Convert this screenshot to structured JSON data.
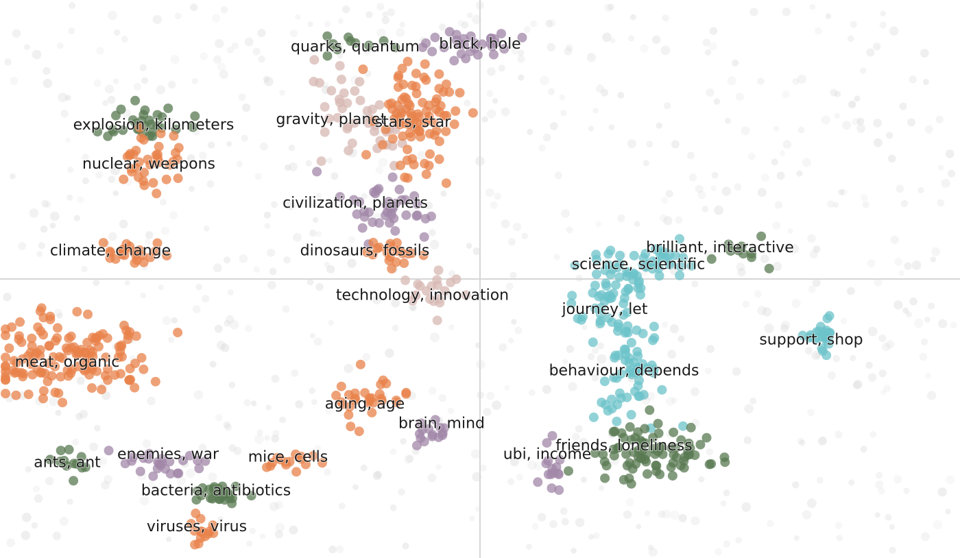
{
  "chart_data": {
    "type": "scatter",
    "title": "",
    "xlabel": "",
    "ylabel": "",
    "xlim": [
      -1,
      1
    ],
    "ylim": [
      -1,
      1
    ],
    "origin_lines": true,
    "grid": false,
    "legend": "none",
    "colors": {
      "orange": "#e8824a",
      "purple": "#a287a8",
      "teal": "#6cc3c9",
      "green": "#587a52",
      "rose": "#d7b8b3",
      "background": "#d9d9d9",
      "axis": "#d6d6d6"
    },
    "clusters": [
      {
        "label": "quarks, quantum",
        "x": -0.27,
        "y": 0.83,
        "color": "green",
        "spread": [
          0.04,
          0.025
        ],
        "count": 10
      },
      {
        "label": "black, hole",
        "x": -0.03,
        "y": 0.84,
        "color": "purple",
        "spread": [
          0.04,
          0.03
        ],
        "count": 30
      },
      {
        "label": "explosion, kilometers",
        "x": -0.69,
        "y": 0.56,
        "color": "green",
        "spread": [
          0.04,
          0.04
        ],
        "count": 30
      },
      {
        "label": "gravity, planet",
        "x": -0.25,
        "y": 0.56,
        "color": "rose",
        "spread": [
          0.07,
          0.09
        ],
        "count": 45
      },
      {
        "label": "stars, star",
        "x": -0.13,
        "y": 0.58,
        "color": "orange",
        "spread": [
          0.04,
          0.12
        ],
        "count": 90
      },
      {
        "label": "nuclear, weapons",
        "x": -0.69,
        "y": 0.42,
        "color": "orange",
        "spread": [
          0.035,
          0.06
        ],
        "count": 35
      },
      {
        "label": "civilization, planets",
        "x": -0.2,
        "y": 0.27,
        "color": "purple",
        "spread": [
          0.05,
          0.05
        ],
        "count": 40
      },
      {
        "label": "climate, change",
        "x": -0.72,
        "y": 0.09,
        "color": "orange",
        "spread": [
          0.04,
          0.02
        ],
        "count": 25
      },
      {
        "label": "dinosaurs, fossils",
        "x": -0.17,
        "y": 0.09,
        "color": "orange",
        "spread": [
          0.03,
          0.02
        ],
        "count": 20
      },
      {
        "label": "brilliant, interactive",
        "x": 0.55,
        "y": 0.1,
        "color": "green",
        "spread": [
          0.04,
          0.03
        ],
        "count": 10
      },
      {
        "label": "science, scientific",
        "x": 0.36,
        "y": 0.05,
        "color": "teal",
        "spread": [
          0.06,
          0.03
        ],
        "count": 40
      },
      {
        "label": "technology, innovation",
        "x": -0.09,
        "y": -0.05,
        "color": "rose",
        "spread": [
          0.03,
          0.05
        ],
        "count": 20
      },
      {
        "label": "journey, let",
        "x": 0.28,
        "y": -0.08,
        "color": "teal",
        "spread": [
          0.04,
          0.07
        ],
        "count": 55
      },
      {
        "label": "support, shop",
        "x": 0.71,
        "y": -0.2,
        "color": "teal",
        "spread": [
          0.02,
          0.03
        ],
        "count": 25
      },
      {
        "label": "meat, organic",
        "x": -0.87,
        "y": -0.27,
        "color": "orange",
        "spread": [
          0.09,
          0.07
        ],
        "count": 140
      },
      {
        "label": "behaviour, depends",
        "x": 0.32,
        "y": -0.32,
        "color": "teal",
        "spread": [
          0.04,
          0.1
        ],
        "count": 55
      },
      {
        "label": "aging, age",
        "x": -0.24,
        "y": -0.44,
        "color": "orange",
        "spread": [
          0.05,
          0.04
        ],
        "count": 30
      },
      {
        "label": "brain, mind",
        "x": -0.1,
        "y": -0.55,
        "color": "purple",
        "spread": [
          0.03,
          0.02
        ],
        "count": 15
      },
      {
        "label": "friends, loneliness",
        "x": 0.35,
        "y": -0.62,
        "color": "green",
        "spread": [
          0.06,
          0.05
        ],
        "count": 80
      },
      {
        "label": "ubi, income",
        "x": 0.15,
        "y": -0.67,
        "color": "purple",
        "spread": [
          0.01,
          0.06
        ],
        "count": 15
      },
      {
        "label": "ants, ant",
        "x": -0.86,
        "y": -0.66,
        "color": "green",
        "spread": [
          0.02,
          0.02
        ],
        "count": 12
      },
      {
        "label": "enemies, war",
        "x": -0.68,
        "y": -0.66,
        "color": "purple",
        "spread": [
          0.05,
          0.02
        ],
        "count": 25
      },
      {
        "label": "mice, cells",
        "x": -0.4,
        "y": -0.65,
        "color": "orange",
        "spread": [
          0.03,
          0.02
        ],
        "count": 15
      },
      {
        "label": "bacteria, antibiotics",
        "x": -0.55,
        "y": -0.77,
        "color": "green",
        "spread": [
          0.03,
          0.02
        ],
        "count": 25
      },
      {
        "label": "viruses, virus",
        "x": -0.58,
        "y": -0.9,
        "color": "orange",
        "spread": [
          0.015,
          0.03
        ],
        "count": 15
      }
    ],
    "labels": [
      {
        "text": "quarks, quantum",
        "x": -0.26,
        "y": 0.83
      },
      {
        "text": "black, hole",
        "x": 0.0,
        "y": 0.84
      },
      {
        "text": "explosion, kilometers",
        "x": -0.68,
        "y": 0.55
      },
      {
        "text": "gravity, planet",
        "x": -0.31,
        "y": 0.57
      },
      {
        "text": "stars, star",
        "x": -0.14,
        "y": 0.56
      },
      {
        "text": "nuclear, weapons",
        "x": -0.69,
        "y": 0.41
      },
      {
        "text": "civilization, planets",
        "x": -0.26,
        "y": 0.27
      },
      {
        "text": "climate, change",
        "x": -0.77,
        "y": 0.1
      },
      {
        "text": "dinosaurs, fossils",
        "x": -0.24,
        "y": 0.1
      },
      {
        "text": "brilliant, interactive",
        "x": 0.5,
        "y": 0.11
      },
      {
        "text": "science, scientific",
        "x": 0.33,
        "y": 0.05
      },
      {
        "text": "technology, innovation",
        "x": -0.12,
        "y": -0.06
      },
      {
        "text": "journey, let",
        "x": 0.26,
        "y": -0.11
      },
      {
        "text": "support, shop",
        "x": 0.69,
        "y": -0.22
      },
      {
        "text": "meat, organic",
        "x": -0.86,
        "y": -0.3
      },
      {
        "text": "behaviour, depends",
        "x": 0.3,
        "y": -0.33
      },
      {
        "text": "aging, age",
        "x": -0.24,
        "y": -0.45
      },
      {
        "text": "brain, mind",
        "x": -0.08,
        "y": -0.52
      },
      {
        "text": "friends, loneliness",
        "x": 0.3,
        "y": -0.6
      },
      {
        "text": "ubi, income",
        "x": 0.14,
        "y": -0.63
      },
      {
        "text": "ants, ant",
        "x": -0.86,
        "y": -0.66
      },
      {
        "text": "enemies, war",
        "x": -0.65,
        "y": -0.63
      },
      {
        "text": "mice, cells",
        "x": -0.4,
        "y": -0.64
      },
      {
        "text": "bacteria, antibiotics",
        "x": -0.55,
        "y": -0.76
      },
      {
        "text": "viruses, virus",
        "x": -0.59,
        "y": -0.89
      }
    ]
  }
}
